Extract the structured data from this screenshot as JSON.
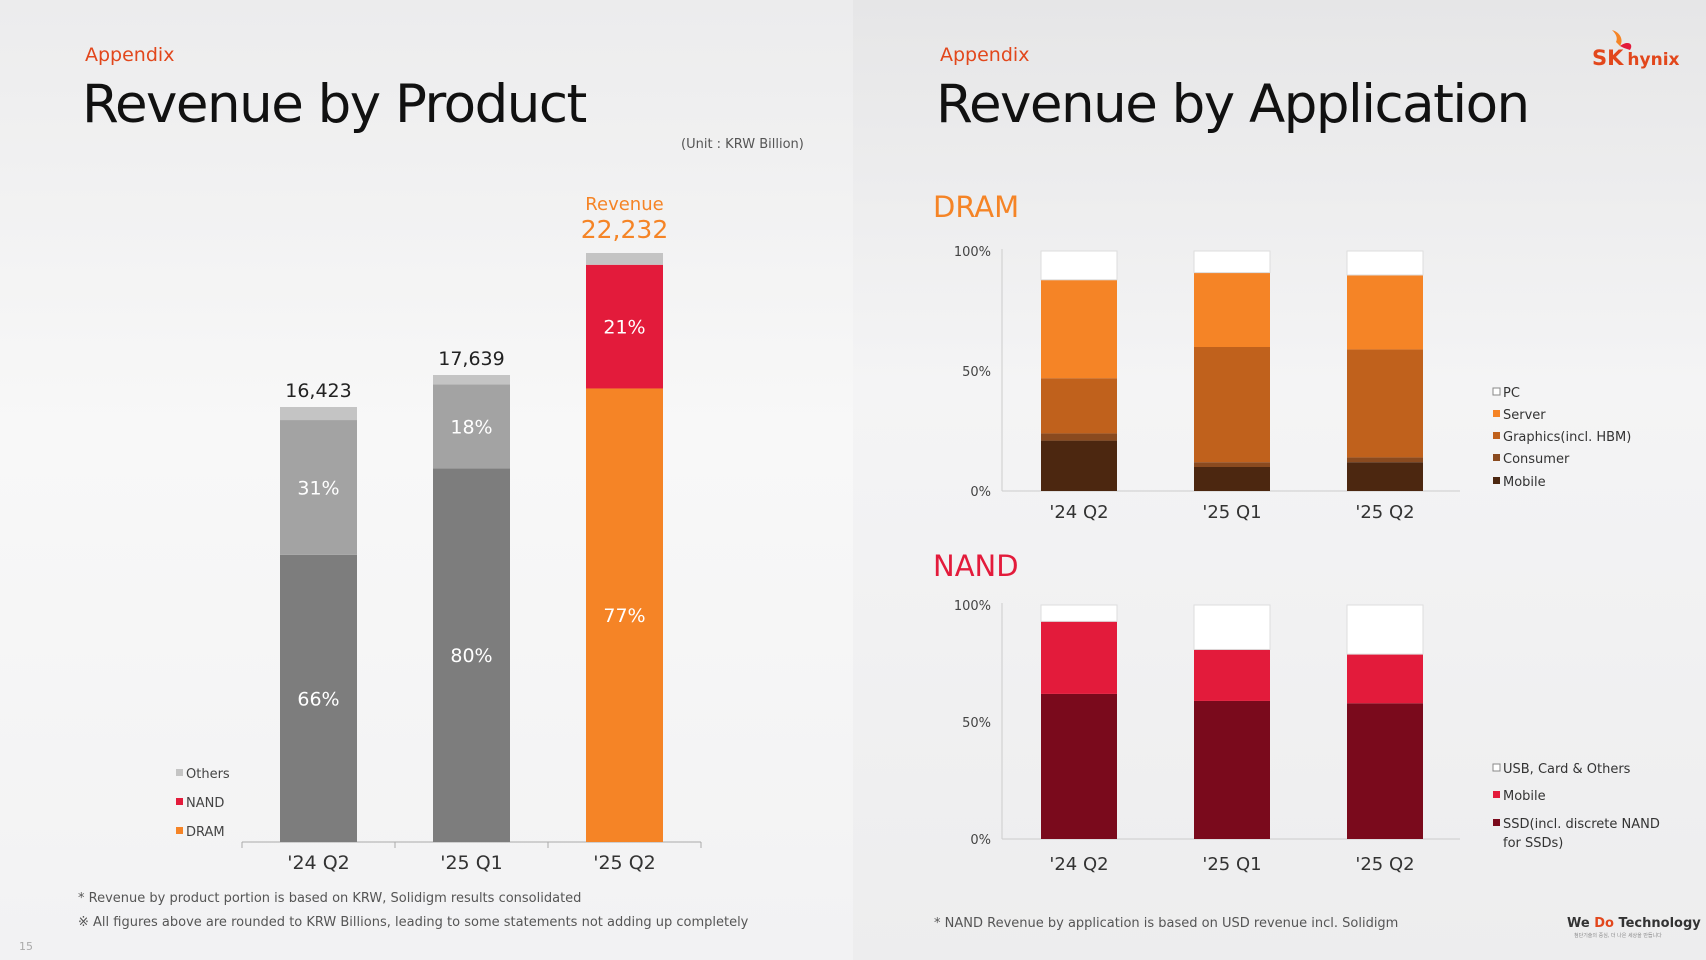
{
  "left": {
    "appendix": "Appendix",
    "title": "Revenue by Product",
    "unit": "(Unit : KRW Billion)",
    "notes": [
      "* Revenue by product portion is based on KRW, Solidigm results consolidated",
      "※ All figures above are rounded to KRW Billions, leading to some statements not adding up completely"
    ],
    "page_number": "15"
  },
  "right": {
    "appendix": "Appendix",
    "title": "Revenue by Application",
    "note": "* NAND Revenue by application is based on USD revenue incl. Solidigm"
  },
  "brand": {
    "logo_sk": "SK",
    "logo_hynix": "hynix",
    "tagline_we": "We ",
    "tagline_do": "Do",
    "tagline_tech": " Technology",
    "tagline_sub": "첨단기술의 중심, 더 나은 세상을 만듭니다"
  },
  "colors": {
    "accent": "#e2471c",
    "nand_red": "#e31b3b",
    "dram_orange": "#f58426",
    "dark_gray": "#7d7d7d",
    "mid_gray": "#a3a3a3",
    "light_gray": "#c4c4c4"
  },
  "chart_data": [
    {
      "id": "product",
      "type": "bar",
      "stacked": true,
      "title": "Revenue by Product",
      "categories": [
        "'24 Q2",
        "'25 Q1",
        "'25 Q2"
      ],
      "totals": [
        16423,
        17639,
        22232
      ],
      "total_labels": [
        "16,423",
        "17,639",
        "22,232"
      ],
      "highlight_label": "Revenue",
      "series": [
        {
          "name": "DRAM",
          "color": "#f58426"
        },
        {
          "name": "NAND",
          "color": "#e31b3b"
        },
        {
          "name": "Others",
          "color": "#c4c4c4"
        }
      ],
      "segments": [
        [
          {
            "value": 66,
            "label": "66%",
            "color": "#7d7d7d"
          },
          {
            "value": 31,
            "label": "31%",
            "color": "#a3a3a3"
          },
          {
            "value": 3,
            "label": "",
            "color": "#c4c4c4"
          }
        ],
        [
          {
            "value": 80,
            "label": "80%",
            "color": "#7d7d7d"
          },
          {
            "value": 18,
            "label": "18%",
            "color": "#a3a3a3"
          },
          {
            "value": 2,
            "label": "",
            "color": "#c4c4c4"
          }
        ],
        [
          {
            "value": 77,
            "label": "77%",
            "color": "#f58426"
          },
          {
            "value": 21,
            "label": "21%",
            "color": "#e31b3b"
          },
          {
            "value": 2,
            "label": "",
            "color": "#c4c4c4"
          }
        ]
      ],
      "legend": [
        {
          "name": "Others",
          "color": "#c4c4c4"
        },
        {
          "name": "NAND",
          "color": "#e31b3b"
        },
        {
          "name": "DRAM",
          "color": "#f58426"
        }
      ]
    },
    {
      "id": "dram",
      "type": "bar",
      "stacked": true,
      "title": "DRAM",
      "title_color": "#f58426",
      "categories": [
        "'24 Q2",
        "'25 Q1",
        "'25 Q2"
      ],
      "yticks": [
        "0%",
        "50%",
        "100%"
      ],
      "ylim": [
        0,
        100
      ],
      "series": [
        {
          "name": "Mobile",
          "color": "#4c2710",
          "values": [
            21,
            10,
            12
          ]
        },
        {
          "name": "Consumer",
          "color": "#8a4a1f",
          "values": [
            3,
            2,
            2
          ]
        },
        {
          "name": "Graphics(incl. HBM)",
          "color": "#c0611c",
          "values": [
            23,
            48,
            45
          ]
        },
        {
          "name": "Server",
          "color": "#f58426",
          "values": [
            41,
            31,
            31
          ]
        },
        {
          "name": "PC",
          "color": "#ffffff",
          "values": [
            12,
            9,
            10
          ]
        }
      ],
      "legend": [
        {
          "name": "PC",
          "color": "#ffffff"
        },
        {
          "name": "Server",
          "color": "#f58426"
        },
        {
          "name": "Graphics(incl. HBM)",
          "color": "#c0611c"
        },
        {
          "name": "Consumer",
          "color": "#8a4a1f"
        },
        {
          "name": "Mobile",
          "color": "#4c2710"
        }
      ]
    },
    {
      "id": "nand",
      "type": "bar",
      "stacked": true,
      "title": "NAND",
      "title_color": "#e31b3b",
      "categories": [
        "'24 Q2",
        "'25 Q1",
        "'25 Q2"
      ],
      "yticks": [
        "0%",
        "50%",
        "100%"
      ],
      "ylim": [
        0,
        100
      ],
      "series": [
        {
          "name": "SSD(incl. discrete NAND for SSDs)",
          "color": "#7a0a1c",
          "values": [
            62,
            59,
            58
          ]
        },
        {
          "name": "Mobile",
          "color": "#e31b3b",
          "values": [
            31,
            22,
            21
          ]
        },
        {
          "name": "USB, Card & Others",
          "color": "#ffffff",
          "values": [
            7,
            19,
            21
          ]
        }
      ],
      "legend": [
        {
          "name": "USB, Card & Others",
          "color": "#ffffff"
        },
        {
          "name": "Mobile",
          "color": "#e31b3b"
        },
        {
          "name": "SSD(incl. discrete NAND|for SSDs)",
          "color": "#7a0a1c"
        }
      ]
    }
  ]
}
